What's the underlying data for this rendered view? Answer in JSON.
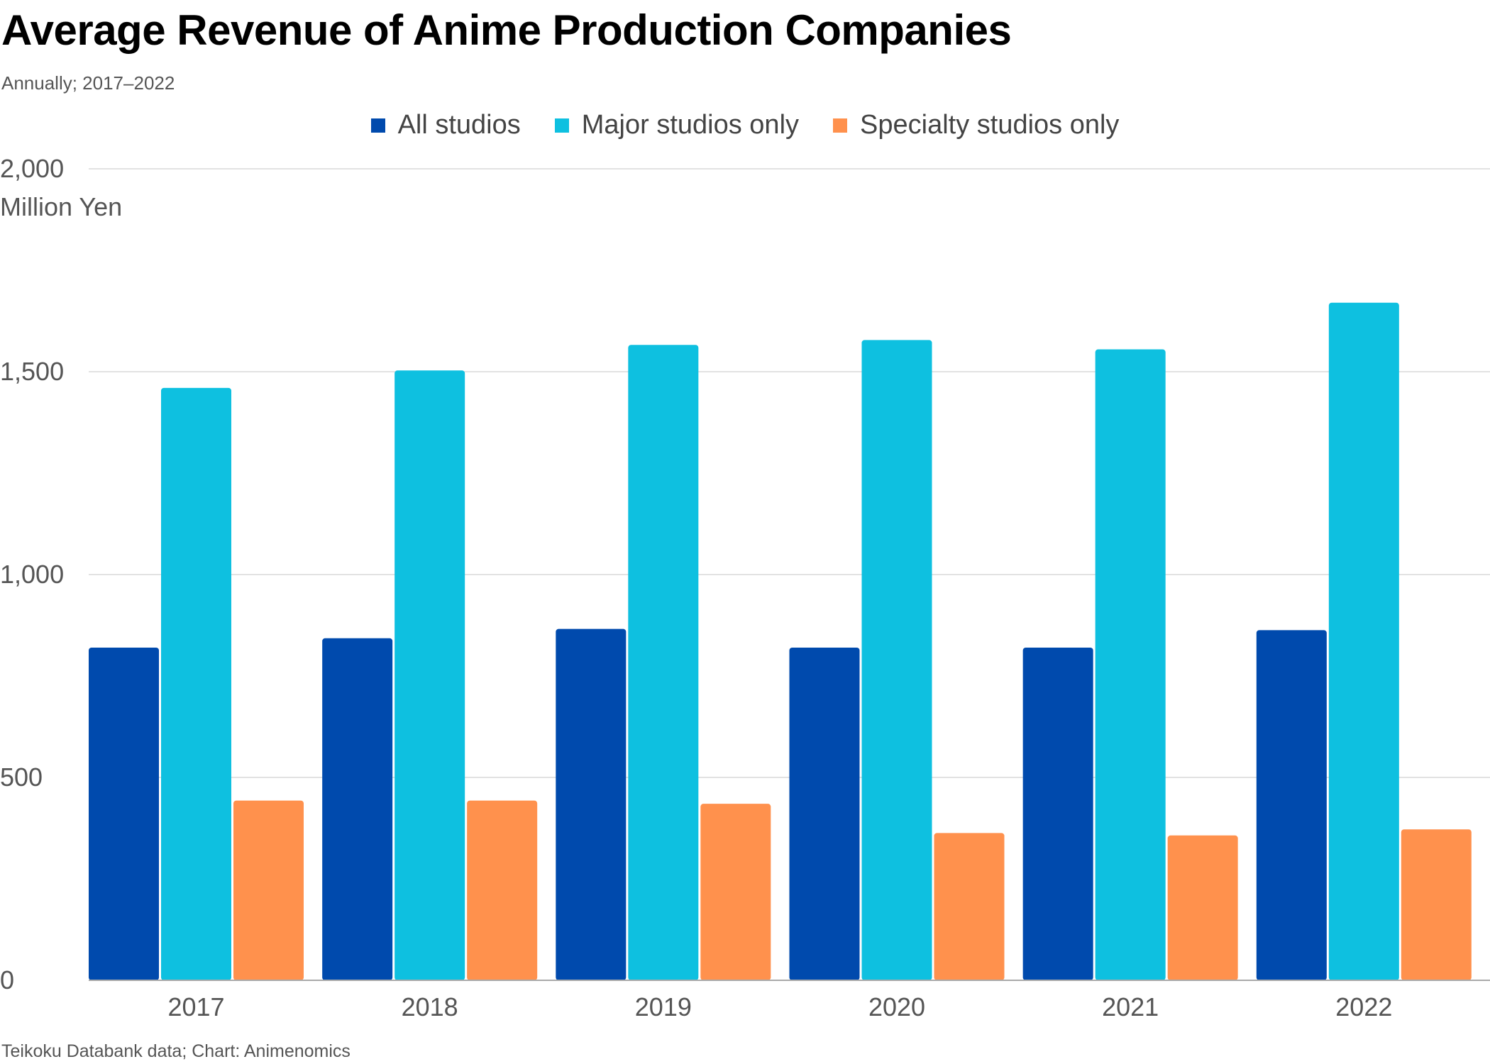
{
  "title": "Average Revenue of Anime Production Companies",
  "subtitle": "Annually; 2017–2022",
  "footer": "Teikoku Databank data; Chart: Animenomics",
  "colors": {
    "all": "#004AAD",
    "major": "#0EC0E0",
    "specialty": "#FF914D",
    "grid": "#d9d9d9",
    "axis": "#aaaaaa",
    "tick_text": "#555555"
  },
  "chart_data": {
    "type": "bar",
    "categories": [
      "2017",
      "2018",
      "2019",
      "2020",
      "2021",
      "2022"
    ],
    "series": [
      {
        "name": "All studios",
        "values": [
          820,
          843,
          866,
          820,
          820,
          863
        ]
      },
      {
        "name": "Major studios only",
        "values": [
          1460,
          1503,
          1566,
          1578,
          1555,
          1670
        ]
      },
      {
        "name": "Specialty studios only",
        "values": [
          443,
          443,
          435,
          363,
          357,
          372
        ]
      }
    ],
    "ylabel": "Million Yen",
    "xlabel": "",
    "ylim": [
      0,
      2000
    ],
    "yticks": [
      0,
      500,
      1000,
      1500,
      2000
    ],
    "ytick_labels": [
      "0",
      "500",
      "1,000",
      "1,500",
      "2,000"
    ],
    "grid": true,
    "legend": "top-center"
  }
}
